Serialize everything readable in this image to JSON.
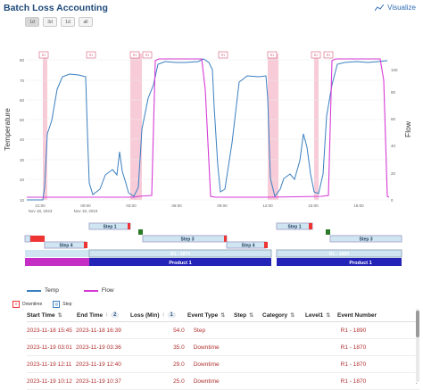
{
  "header": {
    "title": "Batch Loss Accounting",
    "visualize_label": "Visualize"
  },
  "range_buttons": [
    {
      "label": "1d",
      "active": true
    },
    {
      "label": "3d",
      "active": false
    },
    {
      "label": "1d",
      "active": false
    },
    {
      "label": "all",
      "active": false
    }
  ],
  "chart_data": {
    "type": "line",
    "left_axis": {
      "label": "Temperature",
      "ticks": [
        "10",
        "20",
        "30",
        "40",
        "50",
        "60",
        "70",
        "80"
      ]
    },
    "right_axis": {
      "label": "Flow",
      "ticks": [
        "0",
        "20",
        "40",
        "60",
        "80",
        "100"
      ]
    },
    "x_ticks": [
      {
        "label": "21:00",
        "sub": "Nov 18, 2023"
      },
      {
        "label": "00:00",
        "sub": "Nov 19, 2023"
      },
      {
        "label": "03:00",
        "sub": ""
      },
      {
        "label": "06:00",
        "sub": ""
      },
      {
        "label": "09:00",
        "sub": ""
      },
      {
        "label": "12:00",
        "sub": ""
      },
      {
        "label": "15:00",
        "sub": ""
      },
      {
        "label": "18:00",
        "sub": ""
      }
    ],
    "series": [
      {
        "name": "Temp",
        "color": "#3a7fc0"
      },
      {
        "name": "Flow",
        "color": "#d63bd6"
      }
    ],
    "markers": [
      "R1",
      "R1",
      "R1",
      "R1",
      "R1",
      "R1",
      "R1",
      "R1"
    ],
    "colors": {
      "downtime": "#f0a0b8",
      "step": "#3a7fc0"
    }
  },
  "lanes": {
    "step_labels": [
      "Step 1",
      "Step 3",
      "Step 4",
      "Step 4",
      "Step 1",
      "Step 3"
    ],
    "batch_labels": [
      "R1 - 1870",
      "R1 - 1890"
    ],
    "product_labels": [
      "Product 1",
      "Product 1"
    ]
  },
  "legend": {
    "temp": "Temp",
    "flow": "Flow"
  },
  "tags": {
    "downtime": "Downtime",
    "step": "Step"
  },
  "table": {
    "columns": {
      "start": "Start Time",
      "end": "End Time",
      "end_badge": "2",
      "loss": "Loss (Min)",
      "loss_badge": "1",
      "event": "Event Type",
      "step": "Step",
      "category": "Category",
      "level1": "Level1",
      "event_number": "Event Number"
    },
    "rows": [
      {
        "start": "2023-11-18 15:45",
        "end": "2023-11-18 16:39",
        "loss": "54.0",
        "event": "Step",
        "event_number": "R1 - 1890"
      },
      {
        "start": "2023-11-19 03:01",
        "end": "2023-11-19 03:36",
        "loss": "35.0",
        "event": "Downtime",
        "event_number": "R1 - 1870"
      },
      {
        "start": "2023-11-19 12:11",
        "end": "2023-11-19 12:40",
        "loss": "29.0",
        "event": "Downtime",
        "event_number": "R1 - 1870"
      },
      {
        "start": "2023-11-19 10:12",
        "end": "2023-11-19 10:37",
        "loss": "25.0",
        "event": "Downtime",
        "event_number": "R1 - 1870"
      }
    ]
  }
}
